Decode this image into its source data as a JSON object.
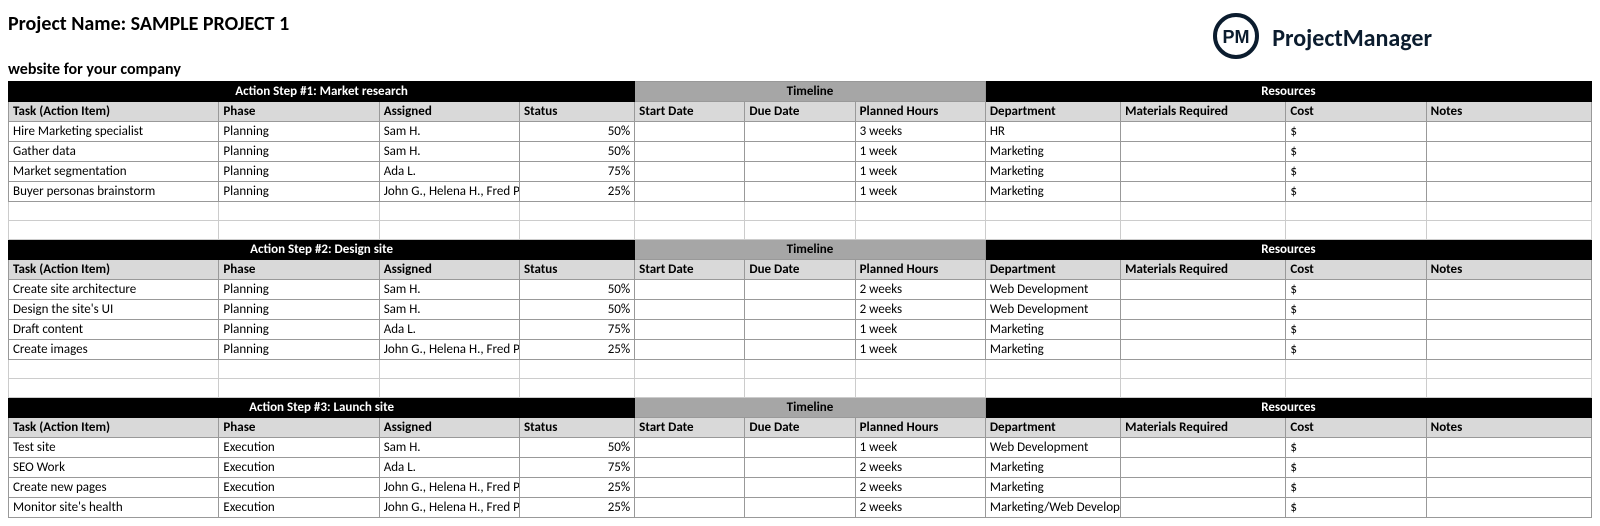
{
  "header": {
    "project_label": "Project Name: SAMPLE PROJECT 1",
    "subtitle": "website for your company",
    "logo_text": "ProjectManager",
    "logo_initials": "PM"
  },
  "columns": {
    "task": "Task (Action Item)",
    "phase": "Phase",
    "assigned": "Assigned",
    "status": "Status",
    "start": "Start Date",
    "due": "Due Date",
    "planned": "Planned Hours",
    "timeline_group": "Timeline",
    "resources_group": "Resources",
    "department": "Department",
    "materials": "Materials Required",
    "cost": "Cost",
    "notes": "Notes"
  },
  "colors": {
    "section_bg": "#000000",
    "section_fg": "#ffffff",
    "timeline_bg": "#a6a6a6",
    "colhdr_bg": "#d9d9d9",
    "border": "#999999"
  },
  "steps": [
    {
      "title": "Action Step #1: Market research",
      "rows": [
        {
          "task": "Hire Marketing specialist",
          "phase": "Planning",
          "assigned": "Sam H.",
          "status": "50%",
          "start": "",
          "due": "",
          "planned": "3 weeks",
          "dept": "HR",
          "materials": "",
          "cost": "$",
          "notes": ""
        },
        {
          "task": "Gather data",
          "phase": "Planning",
          "assigned": "Sam H.",
          "status": "50%",
          "start": "",
          "due": "",
          "planned": "1 week",
          "dept": "Marketing",
          "materials": "",
          "cost": "$",
          "notes": ""
        },
        {
          "task": "Market segmentation",
          "phase": "Planning",
          "assigned": "Ada L.",
          "status": "75%",
          "start": "",
          "due": "",
          "planned": "1 week",
          "dept": "Marketing",
          "materials": "",
          "cost": "$",
          "notes": ""
        },
        {
          "task": "Buyer personas brainstorm",
          "phase": "Planning",
          "assigned": "John G., Helena H., Fred P.",
          "status": "25%",
          "start": "",
          "due": "",
          "planned": "1 week",
          "dept": "Marketing",
          "materials": "",
          "cost": "$",
          "notes": ""
        }
      ],
      "blank_after": 2
    },
    {
      "title": "Action Step #2: Design site",
      "rows": [
        {
          "task": "Create site architecture",
          "phase": "Planning",
          "assigned": "Sam H.",
          "status": "50%",
          "start": "",
          "due": "",
          "planned": "2 weeks",
          "dept": "Web Development",
          "materials": "",
          "cost": "$",
          "notes": ""
        },
        {
          "task": "Design the site's UI",
          "phase": "Planning",
          "assigned": "Sam H.",
          "status": "50%",
          "start": "",
          "due": "",
          "planned": "2 weeks",
          "dept": "Web Development",
          "materials": "",
          "cost": "$",
          "notes": ""
        },
        {
          "task": "Draft content",
          "phase": "Planning",
          "assigned": "Ada L.",
          "status": "75%",
          "start": "",
          "due": "",
          "planned": "1 week",
          "dept": "Marketing",
          "materials": "",
          "cost": "$",
          "notes": ""
        },
        {
          "task": "Create images",
          "phase": "Planning",
          "assigned": "John G., Helena H., Fred P.",
          "status": "25%",
          "start": "",
          "due": "",
          "planned": "1 week",
          "dept": "Marketing",
          "materials": "",
          "cost": "$",
          "notes": ""
        }
      ],
      "blank_after": 2
    },
    {
      "title": "Action Step #3: Launch site",
      "rows": [
        {
          "task": "Test site",
          "phase": "Execution",
          "assigned": "Sam H.",
          "status": "50%",
          "start": "",
          "due": "",
          "planned": "1 week",
          "dept": "Web Development",
          "materials": "",
          "cost": "$",
          "notes": ""
        },
        {
          "task": "SEO Work",
          "phase": "Execution",
          "assigned": "Ada L.",
          "status": "75%",
          "start": "",
          "due": "",
          "planned": "2 weeks",
          "dept": "Marketing",
          "materials": "",
          "cost": "$",
          "notes": ""
        },
        {
          "task": "Create new pages",
          "phase": "Execution",
          "assigned": "John G., Helena H., Fred P.",
          "status": "25%",
          "start": "",
          "due": "",
          "planned": "2 weeks",
          "dept": "Marketing",
          "materials": "",
          "cost": "$",
          "notes": ""
        },
        {
          "task": "Monitor site's health",
          "phase": "Execution",
          "assigned": "John G., Helena H., Fred P.",
          "status": "25%",
          "start": "",
          "due": "",
          "planned": "2 weeks",
          "dept": "Marketing/Web Development",
          "materials": "",
          "cost": "$",
          "notes": ""
        }
      ],
      "blank_after": 0
    }
  ]
}
